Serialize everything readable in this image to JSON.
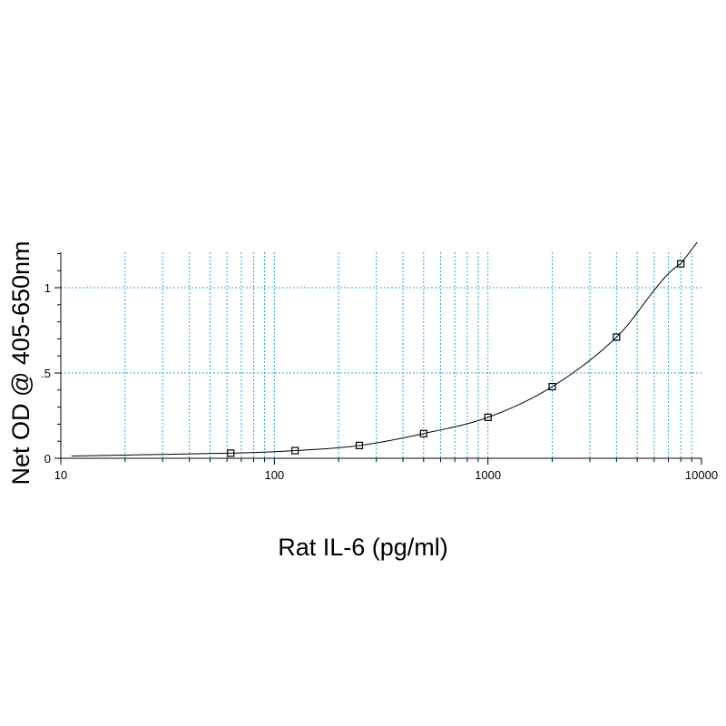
{
  "chart_data": {
    "type": "scatter",
    "title": "",
    "xlabel": "Rat IL-6 (pg/ml)",
    "ylabel": "Net OD @ 405-650nm",
    "x_scale": "log",
    "xlim": [
      10,
      10000
    ],
    "ylim": [
      0,
      1.2
    ],
    "x_ticks": [
      10,
      100,
      1000,
      10000
    ],
    "x_tick_labels": [
      "10",
      "100",
      "1000",
      "10000"
    ],
    "y_ticks": [
      0,
      0.5,
      1
    ],
    "y_tick_labels": [
      "0",
      ".5",
      "1"
    ],
    "grid": true,
    "legend": "none",
    "colors": {
      "grid": "#29a9d6",
      "line": "#000000",
      "marker": "#000000"
    },
    "series": [
      {
        "x": [
          62.5,
          125,
          250,
          500,
          1000,
          2000,
          4000,
          8000
        ],
        "y": [
          0.03,
          0.045,
          0.075,
          0.145,
          0.24,
          0.42,
          0.71,
          1.14
        ]
      }
    ]
  }
}
